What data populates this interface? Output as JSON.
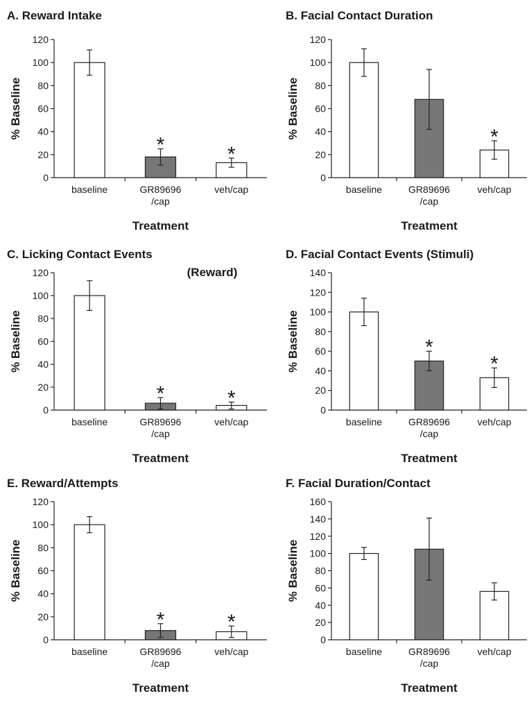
{
  "colors": {
    "white_bar": "#ffffff",
    "gray_bar": "#777777",
    "axis": "#222222"
  },
  "chart_data": [
    {
      "type": "bar",
      "title": "A. Reward Intake",
      "xlabel": "Treatment",
      "ylabel": "% Baseline",
      "categories": [
        "baseline",
        "GR89696 /cap",
        "veh/cap"
      ],
      "category_lines": [
        [
          "baseline"
        ],
        [
          "GR89696",
          "/cap"
        ],
        [
          "veh/cap"
        ]
      ],
      "values": [
        100,
        18,
        13
      ],
      "errors": [
        11,
        7,
        4
      ],
      "significant": [
        false,
        true,
        true
      ],
      "bar_colors": [
        "#ffffff",
        "#777777",
        "#ffffff"
      ],
      "ylim": [
        0,
        120
      ],
      "yticks": [
        0,
        20,
        40,
        60,
        80,
        100,
        120
      ],
      "annotation": "*"
    },
    {
      "type": "bar",
      "title": "B. Facial Contact Duration",
      "xlabel": "Treatment",
      "ylabel": "% Baseline",
      "categories": [
        "baseline",
        "GR89696 /cap",
        "veh/cap"
      ],
      "category_lines": [
        [
          "baseline"
        ],
        [
          "GR89696",
          "/cap"
        ],
        [
          "veh/cap"
        ]
      ],
      "values": [
        100,
        68,
        24
      ],
      "errors": [
        12,
        26,
        8
      ],
      "significant": [
        false,
        false,
        true
      ],
      "bar_colors": [
        "#ffffff",
        "#777777",
        "#ffffff"
      ],
      "ylim": [
        0,
        120
      ],
      "yticks": [
        0,
        20,
        40,
        60,
        80,
        100,
        120
      ],
      "annotation": "*"
    },
    {
      "type": "bar",
      "title": "C. Licking Contact Events",
      "subtitle": "(Reward)",
      "xlabel": "Treatment",
      "ylabel": "% Baseline",
      "categories": [
        "baseline",
        "GR89696 /cap",
        "veh/cap"
      ],
      "category_lines": [
        [
          "baseline"
        ],
        [
          "GR89696",
          "/cap"
        ],
        [
          "veh/cap"
        ]
      ],
      "values": [
        100,
        6,
        4
      ],
      "errors": [
        13,
        5,
        3
      ],
      "significant": [
        false,
        true,
        true
      ],
      "bar_colors": [
        "#ffffff",
        "#777777",
        "#ffffff"
      ],
      "ylim": [
        0,
        120
      ],
      "yticks": [
        0,
        20,
        40,
        60,
        80,
        100,
        120
      ],
      "annotation": "*"
    },
    {
      "type": "bar",
      "title": "D. Facial Contact Events (Stimuli)",
      "xlabel": "Treatment",
      "ylabel": "% Baseline",
      "categories": [
        "baseline",
        "GR89696 /cap",
        "veh/cap"
      ],
      "category_lines": [
        [
          "baseline"
        ],
        [
          "GR89696",
          "/cap"
        ],
        [
          "veh/cap"
        ]
      ],
      "values": [
        100,
        50,
        33
      ],
      "errors": [
        14,
        10,
        10
      ],
      "significant": [
        false,
        true,
        true
      ],
      "bar_colors": [
        "#ffffff",
        "#777777",
        "#ffffff"
      ],
      "ylim": [
        0,
        140
      ],
      "yticks": [
        0,
        20,
        40,
        60,
        80,
        100,
        120,
        140
      ],
      "annotation": "*"
    },
    {
      "type": "bar",
      "title": "E. Reward/Attempts",
      "xlabel": "Treatment",
      "ylabel": "% Baseline",
      "categories": [
        "baseline",
        "GR89696 /cap",
        "veh/cap"
      ],
      "category_lines": [
        [
          "baseline"
        ],
        [
          "GR89696",
          "/cap"
        ],
        [
          "veh/cap"
        ]
      ],
      "values": [
        100,
        8,
        7
      ],
      "errors": [
        7,
        6,
        5
      ],
      "significant": [
        false,
        true,
        true
      ],
      "bar_colors": [
        "#ffffff",
        "#777777",
        "#ffffff"
      ],
      "ylim": [
        0,
        120
      ],
      "yticks": [
        0,
        20,
        40,
        60,
        80,
        100,
        120
      ],
      "annotation": "*"
    },
    {
      "type": "bar",
      "title": "F. Facial Duration/Contact",
      "xlabel": "Treatment",
      "ylabel": "% Baseline",
      "categories": [
        "baseline",
        "GR89696 /cap",
        "veh/cap"
      ],
      "category_lines": [
        [
          "baseline"
        ],
        [
          "GR89696",
          "/cap"
        ],
        [
          "veh/cap"
        ]
      ],
      "values": [
        100,
        105,
        56
      ],
      "errors": [
        7,
        36,
        10
      ],
      "significant": [
        false,
        false,
        false
      ],
      "bar_colors": [
        "#ffffff",
        "#777777",
        "#ffffff"
      ],
      "ylim": [
        0,
        160
      ],
      "yticks": [
        0,
        20,
        40,
        60,
        80,
        100,
        120,
        140,
        160
      ],
      "annotation": "*"
    }
  ]
}
